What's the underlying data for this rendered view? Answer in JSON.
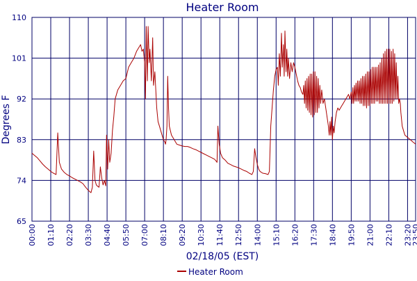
{
  "chart_data": {
    "type": "line",
    "title": "Heater Room",
    "xlabel": "02/18/05 (EST)",
    "ylabel": "Degrees F",
    "ylim": [
      65,
      110
    ],
    "xlim": [
      "00:00",
      "23:50"
    ],
    "y_ticks": [
      65,
      74,
      83,
      92,
      101,
      110
    ],
    "x_ticks": [
      "00:00",
      "01:10",
      "02:20",
      "03:30",
      "04:40",
      "05:50",
      "07:00",
      "08:10",
      "09:20",
      "10:30",
      "11:40",
      "12:50",
      "14:00",
      "15:10",
      "16:20",
      "17:30",
      "18:40",
      "19:50",
      "21:00",
      "22:10",
      "23:20",
      "23:50"
    ],
    "grid": true,
    "legend": "bottom-center",
    "colors": {
      "series": "#aa0000",
      "grid": "#000066",
      "text": "#000080",
      "background": "#ffffff"
    },
    "series": [
      {
        "name": "Heater Room",
        "points": [
          [
            "00:00",
            80
          ],
          [
            "00:10",
            79.5
          ],
          [
            "00:20",
            79
          ],
          [
            "00:30",
            78.3
          ],
          [
            "00:40",
            77.6
          ],
          [
            "00:50",
            77
          ],
          [
            "01:00",
            76.5
          ],
          [
            "01:10",
            76
          ],
          [
            "01:20",
            75.6
          ],
          [
            "01:30",
            75.3
          ],
          [
            "01:36",
            84.5
          ],
          [
            "01:42",
            78
          ],
          [
            "01:50",
            76.5
          ],
          [
            "02:00",
            75.8
          ],
          [
            "02:10",
            75.3
          ],
          [
            "02:20",
            75
          ],
          [
            "02:30",
            74.6
          ],
          [
            "02:40",
            74.3
          ],
          [
            "02:50",
            74
          ],
          [
            "03:00",
            73.7
          ],
          [
            "03:10",
            73.3
          ],
          [
            "03:20",
            72.5
          ],
          [
            "03:30",
            71.8
          ],
          [
            "03:40",
            71.3
          ],
          [
            "03:45",
            72.5
          ],
          [
            "03:50",
            80.5
          ],
          [
            "03:55",
            74
          ],
          [
            "04:00",
            73
          ],
          [
            "04:05",
            72.7
          ],
          [
            "04:10",
            72.5
          ],
          [
            "04:15",
            77
          ],
          [
            "04:20",
            74.5
          ],
          [
            "04:25",
            73
          ],
          [
            "04:30",
            74
          ],
          [
            "04:35",
            72.8
          ],
          [
            "04:38",
            84
          ],
          [
            "04:42",
            76.5
          ],
          [
            "04:46",
            83
          ],
          [
            "04:50",
            78
          ],
          [
            "04:55",
            80
          ],
          [
            "05:00",
            85
          ],
          [
            "05:05",
            88
          ],
          [
            "05:10",
            92
          ],
          [
            "05:20",
            94
          ],
          [
            "05:30",
            95
          ],
          [
            "05:40",
            96
          ],
          [
            "05:50",
            96.5
          ],
          [
            "06:00",
            99
          ],
          [
            "06:05",
            99.5
          ],
          [
            "06:10",
            100
          ],
          [
            "06:20",
            101
          ],
          [
            "06:30",
            102.5
          ],
          [
            "06:40",
            103.5
          ],
          [
            "06:45",
            104
          ],
          [
            "06:50",
            102.5
          ],
          [
            "06:55",
            103
          ],
          [
            "07:00",
            100
          ],
          [
            "07:03",
            92
          ],
          [
            "07:06",
            108
          ],
          [
            "07:10",
            96
          ],
          [
            "07:13",
            108
          ],
          [
            "07:17",
            100
          ],
          [
            "07:20",
            103
          ],
          [
            "07:25",
            96
          ],
          [
            "07:30",
            105.5
          ],
          [
            "07:33",
            95
          ],
          [
            "07:38",
            98
          ],
          [
            "07:45",
            90
          ],
          [
            "07:50",
            87
          ],
          [
            "07:55",
            86
          ],
          [
            "08:00",
            85
          ],
          [
            "08:05",
            84
          ],
          [
            "08:10",
            83
          ],
          [
            "08:15",
            82.5
          ],
          [
            "08:18",
            82
          ],
          [
            "08:20",
            83
          ],
          [
            "08:23",
            86
          ],
          [
            "08:26",
            97
          ],
          [
            "08:29",
            90
          ],
          [
            "08:32",
            86
          ],
          [
            "08:40",
            84
          ],
          [
            "08:50",
            83
          ],
          [
            "09:00",
            82
          ],
          [
            "09:10",
            81.8
          ],
          [
            "09:20",
            81.6
          ],
          [
            "09:30",
            81.5
          ],
          [
            "09:40",
            81.5
          ],
          [
            "09:50",
            81.3
          ],
          [
            "10:00",
            81
          ],
          [
            "10:10",
            80.8
          ],
          [
            "10:20",
            80.5
          ],
          [
            "10:30",
            80.2
          ],
          [
            "10:40",
            79.9
          ],
          [
            "10:50",
            79.6
          ],
          [
            "11:00",
            79.3
          ],
          [
            "11:10",
            79
          ],
          [
            "11:20",
            78.7
          ],
          [
            "11:25",
            78.4
          ],
          [
            "11:30",
            78
          ],
          [
            "11:33",
            86
          ],
          [
            "11:38",
            82
          ],
          [
            "11:43",
            80
          ],
          [
            "11:50",
            79
          ],
          [
            "12:00",
            78.5
          ],
          [
            "12:10",
            77.8
          ],
          [
            "12:20",
            77.5
          ],
          [
            "12:30",
            77.2
          ],
          [
            "12:40",
            77
          ],
          [
            "12:50",
            76.8
          ],
          [
            "13:00",
            76.5
          ],
          [
            "13:10",
            76.2
          ],
          [
            "13:20",
            76
          ],
          [
            "13:30",
            75.6
          ],
          [
            "13:40",
            75.3
          ],
          [
            "13:45",
            76
          ],
          [
            "13:50",
            81
          ],
          [
            "13:55",
            79
          ],
          [
            "14:00",
            77.5
          ],
          [
            "14:05",
            76.5
          ],
          [
            "14:10",
            76
          ],
          [
            "14:20",
            75.6
          ],
          [
            "14:30",
            75.5
          ],
          [
            "14:40",
            75.3
          ],
          [
            "14:45",
            76
          ],
          [
            "14:50",
            86
          ],
          [
            "14:55",
            90
          ],
          [
            "15:00",
            94
          ],
          [
            "15:05",
            97
          ],
          [
            "15:10",
            98.5
          ],
          [
            "15:15",
            99
          ],
          [
            "15:18",
            95
          ],
          [
            "15:22",
            102
          ],
          [
            "15:26",
            97
          ],
          [
            "15:30",
            106.5
          ],
          [
            "15:33",
            99
          ],
          [
            "15:37",
            104
          ],
          [
            "15:40",
            97
          ],
          [
            "15:43",
            107
          ],
          [
            "15:47",
            98
          ],
          [
            "15:50",
            103
          ],
          [
            "15:53",
            97
          ],
          [
            "15:56",
            101
          ],
          [
            "16:00",
            96.5
          ],
          [
            "16:05",
            100
          ],
          [
            "16:10",
            98
          ],
          [
            "16:15",
            100
          ],
          [
            "16:20",
            99
          ],
          [
            "16:25",
            97.5
          ],
          [
            "16:30",
            96
          ],
          [
            "16:35",
            95
          ],
          [
            "16:40",
            94.5
          ],
          [
            "16:45",
            93.5
          ],
          [
            "16:50",
            93
          ],
          [
            "16:53",
            95
          ],
          [
            "16:56",
            91
          ],
          [
            "16:59",
            96
          ],
          [
            "17:02",
            90
          ],
          [
            "17:05",
            96.5
          ],
          [
            "17:08",
            89.5
          ],
          [
            "17:11",
            97
          ],
          [
            "17:14",
            89
          ],
          [
            "17:17",
            97.5
          ],
          [
            "17:20",
            88.5
          ],
          [
            "17:23",
            97.5
          ],
          [
            "17:26",
            88
          ],
          [
            "17:29",
            98
          ],
          [
            "17:32",
            88.5
          ],
          [
            "17:35",
            98
          ],
          [
            "17:38",
            89
          ],
          [
            "17:41",
            97
          ],
          [
            "17:44",
            89
          ],
          [
            "17:47",
            96.5
          ],
          [
            "17:50",
            90
          ],
          [
            "17:53",
            95
          ],
          [
            "17:56",
            91
          ],
          [
            "18:00",
            94
          ],
          [
            "18:05",
            91
          ],
          [
            "18:10",
            92
          ],
          [
            "18:15",
            90
          ],
          [
            "18:20",
            88
          ],
          [
            "18:25",
            86
          ],
          [
            "18:28",
            84
          ],
          [
            "18:31",
            87
          ],
          [
            "18:34",
            84
          ],
          [
            "18:37",
            88
          ],
          [
            "18:40",
            83
          ],
          [
            "18:43",
            86
          ],
          [
            "18:46",
            84.5
          ],
          [
            "18:50",
            87
          ],
          [
            "18:55",
            89
          ],
          [
            "19:00",
            90
          ],
          [
            "19:05",
            89.5
          ],
          [
            "19:10",
            90
          ],
          [
            "19:15",
            90.5
          ],
          [
            "19:20",
            91
          ],
          [
            "19:25",
            91.5
          ],
          [
            "19:30",
            92
          ],
          [
            "19:35",
            92.5
          ],
          [
            "19:40",
            93
          ],
          [
            "19:45",
            92
          ],
          [
            "19:50",
            93.5
          ],
          [
            "19:53",
            91
          ],
          [
            "19:56",
            94.5
          ],
          [
            "19:59",
            91
          ],
          [
            "20:02",
            95
          ],
          [
            "20:05",
            91.5
          ],
          [
            "20:08",
            95.5
          ],
          [
            "20:11",
            91.5
          ],
          [
            "20:14",
            96
          ],
          [
            "20:17",
            91.5
          ],
          [
            "20:20",
            96
          ],
          [
            "20:23",
            91
          ],
          [
            "20:26",
            96.5
          ],
          [
            "20:29",
            91
          ],
          [
            "20:32",
            97
          ],
          [
            "20:35",
            90.5
          ],
          [
            "20:38",
            97
          ],
          [
            "20:41",
            90.5
          ],
          [
            "20:44",
            97.5
          ],
          [
            "20:47",
            90
          ],
          [
            "20:50",
            98
          ],
          [
            "20:53",
            90.5
          ],
          [
            "20:56",
            98
          ],
          [
            "20:59",
            90.5
          ],
          [
            "21:02",
            98.5
          ],
          [
            "21:05",
            91
          ],
          [
            "21:08",
            99
          ],
          [
            "21:11",
            91
          ],
          [
            "21:14",
            99
          ],
          [
            "21:17",
            91
          ],
          [
            "21:20",
            99
          ],
          [
            "21:23",
            91.5
          ],
          [
            "21:26",
            99
          ],
          [
            "21:29",
            91.5
          ],
          [
            "21:32",
            99.5
          ],
          [
            "21:35",
            91
          ],
          [
            "21:38",
            100
          ],
          [
            "21:41",
            91
          ],
          [
            "21:44",
            101
          ],
          [
            "21:47",
            91
          ],
          [
            "21:50",
            102
          ],
          [
            "21:53",
            91
          ],
          [
            "21:56",
            102.5
          ],
          [
            "21:59",
            91
          ],
          [
            "22:02",
            103
          ],
          [
            "22:05",
            91
          ],
          [
            "22:08",
            103
          ],
          [
            "22:11",
            91
          ],
          [
            "22:14",
            103
          ],
          [
            "22:17",
            91
          ],
          [
            "22:20",
            102.5
          ],
          [
            "22:23",
            91
          ],
          [
            "22:26",
            103
          ],
          [
            "22:29",
            91.5
          ],
          [
            "22:32",
            102
          ],
          [
            "22:35",
            92
          ],
          [
            "22:38",
            100
          ],
          [
            "22:41",
            92
          ],
          [
            "22:44",
            97
          ],
          [
            "22:47",
            91
          ],
          [
            "22:50",
            92
          ],
          [
            "22:53",
            91
          ],
          [
            "22:55",
            89
          ],
          [
            "23:00",
            86
          ],
          [
            "23:05",
            85
          ],
          [
            "23:10",
            84
          ],
          [
            "23:20",
            83.5
          ],
          [
            "23:30",
            83
          ],
          [
            "23:40",
            82.5
          ],
          [
            "23:50",
            82
          ]
        ]
      }
    ]
  }
}
